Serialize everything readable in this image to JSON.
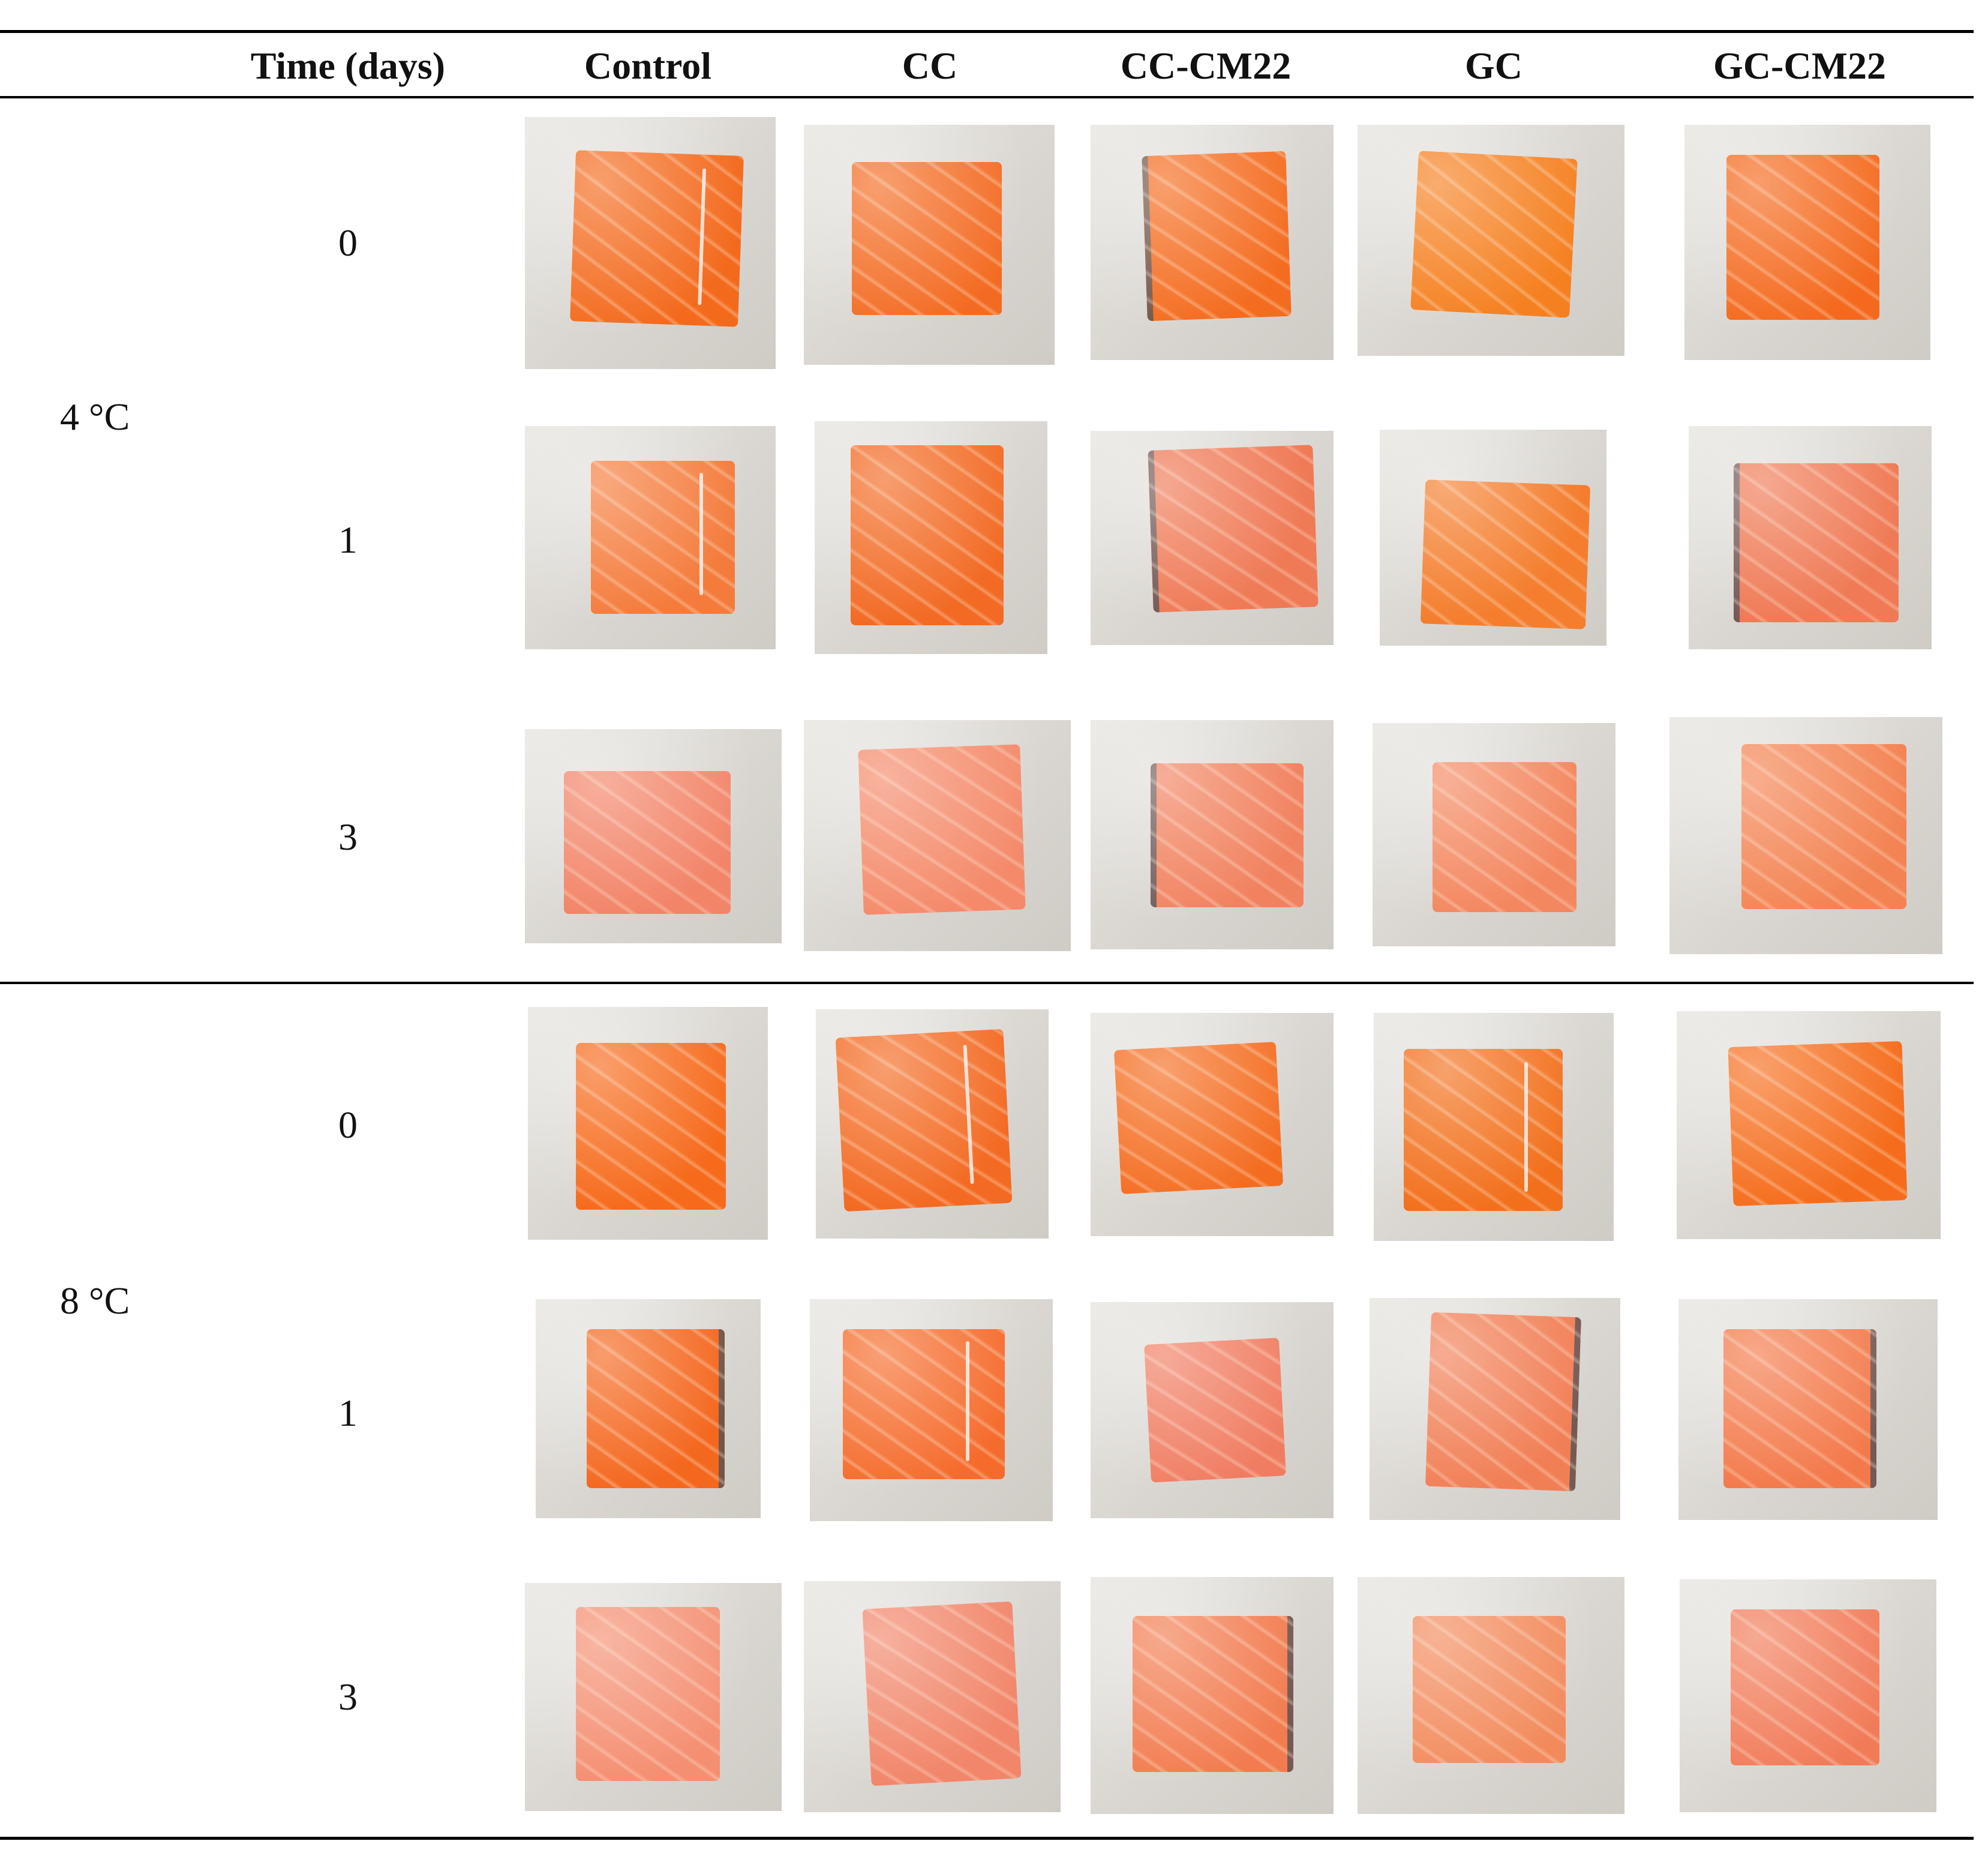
{
  "table": {
    "headers": [
      "Time (days)",
      "Control",
      "CC",
      "CC-CM22",
      "GC",
      "GC-CM22"
    ],
    "groups": [
      {
        "temperature": "4 °C",
        "days": [
          "0",
          "1",
          "3"
        ]
      },
      {
        "temperature": "8 °C",
        "days": [
          "0",
          "1",
          "3"
        ]
      }
    ],
    "photos": {
      "4C": {
        "d0": [
          "#f36a1d",
          "#f36b22",
          "#f46c1f",
          "#f58020",
          "#f4691d"
        ],
        "d1": [
          "#f47b3b",
          "#f26a23",
          "#ef7a56",
          "#f47e2e",
          "#ef7a55"
        ],
        "d3": [
          "#f28468",
          "#f48a6a",
          "#f1825f",
          "#f3875f",
          "#f38352"
        ]
      },
      "8C": {
        "d0": [
          "#f66a1b",
          "#f36a22",
          "#f46c1f",
          "#f2701c",
          "#f56d1c"
        ],
        "d1": [
          "#f4671e",
          "#f56b2b",
          "#f07d62",
          "#f17f56",
          "#f3794a"
        ],
        "d3": [
          "#f48f72",
          "#f1866a",
          "#f27c50",
          "#f28a5b",
          "#f17a57"
        ]
      }
    }
  }
}
